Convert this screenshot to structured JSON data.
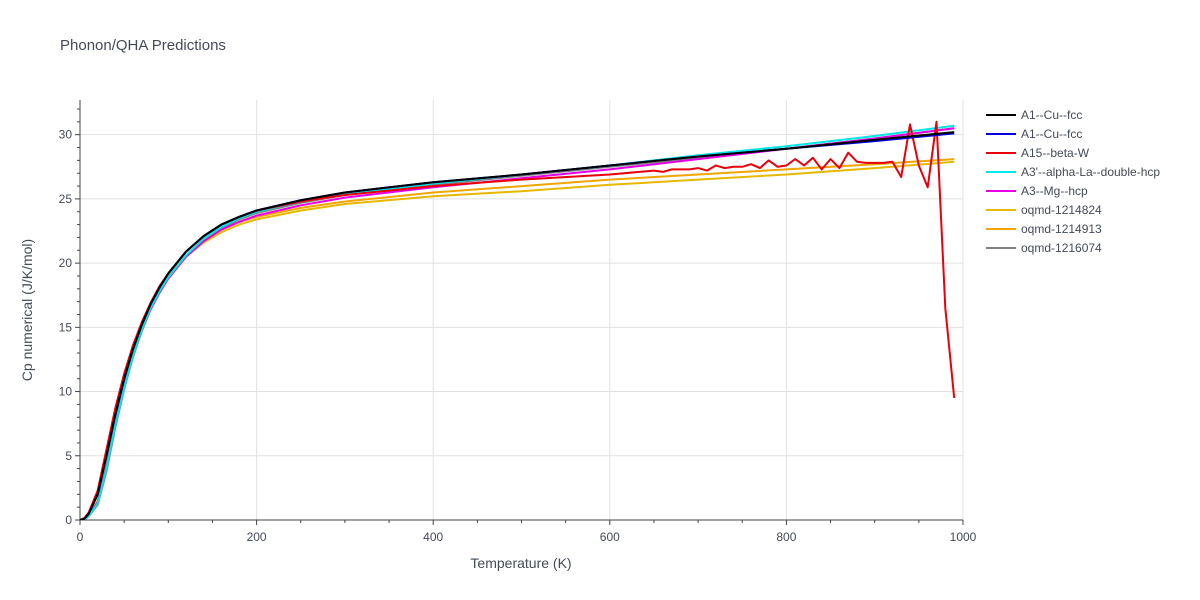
{
  "chart_data": {
    "type": "line",
    "title": "Phonon/QHA Predictions",
    "xlabel": "Temperature (K)",
    "ylabel": "Cp numerical (J/K/mol)",
    "xlim": [
      0,
      1000
    ],
    "ylim": [
      0,
      32.7
    ],
    "xticks": [
      0,
      200,
      400,
      600,
      800,
      1000
    ],
    "yticks": [
      0,
      5,
      10,
      15,
      20,
      25,
      30
    ],
    "grid": true,
    "legend_position": "right",
    "series": [
      {
        "name": "A1--Cu--fcc",
        "color": "#000000",
        "x": [
          0,
          5,
          10,
          20,
          30,
          40,
          50,
          60,
          70,
          80,
          90,
          100,
          120,
          140,
          160,
          180,
          200,
          250,
          300,
          400,
          500,
          600,
          700,
          800,
          900,
          990
        ],
        "y": [
          0,
          0.1,
          0.5,
          2.0,
          5.0,
          8.2,
          11.0,
          13.3,
          15.2,
          16.8,
          18.1,
          19.2,
          20.9,
          22.1,
          23.0,
          23.6,
          24.1,
          24.9,
          25.5,
          26.3,
          26.9,
          27.6,
          28.3,
          28.9,
          29.6,
          30.2
        ]
      },
      {
        "name": "A1--Cu--fcc",
        "color": "#0000dd",
        "x": [
          0,
          5,
          10,
          20,
          30,
          40,
          50,
          60,
          70,
          80,
          90,
          100,
          120,
          140,
          160,
          180,
          200,
          250,
          300,
          400,
          500,
          600,
          700,
          800,
          900,
          990
        ],
        "y": [
          0,
          0.1,
          0.5,
          2.0,
          5.0,
          8.2,
          11.0,
          13.3,
          15.2,
          16.8,
          18.1,
          19.2,
          20.9,
          22.1,
          23.0,
          23.6,
          24.1,
          24.9,
          25.5,
          26.3,
          26.9,
          27.6,
          28.3,
          28.9,
          29.5,
          30.1
        ]
      },
      {
        "name": "A15--beta-W",
        "color": "#e8000b",
        "x": [
          0,
          5,
          10,
          20,
          30,
          40,
          50,
          60,
          70,
          80,
          90,
          100,
          120,
          140,
          160,
          180,
          200,
          250,
          300,
          400,
          500,
          600,
          650,
          660,
          670,
          680,
          690,
          700,
          710,
          720,
          730,
          740,
          750,
          760,
          770,
          780,
          790,
          800,
          810,
          820,
          830,
          840,
          850,
          860,
          870,
          880,
          890,
          900,
          910,
          920,
          930,
          940,
          950,
          960,
          970,
          980,
          990
        ],
        "y": [
          0,
          0.15,
          0.6,
          2.3,
          5.5,
          8.7,
          11.4,
          13.6,
          15.4,
          16.9,
          18.2,
          19.2,
          20.9,
          22.1,
          23.0,
          23.6,
          24.1,
          24.8,
          25.3,
          26.0,
          26.5,
          26.9,
          27.2,
          27.1,
          27.3,
          27.3,
          27.3,
          27.4,
          27.2,
          27.6,
          27.4,
          27.5,
          27.5,
          27.7,
          27.4,
          28.0,
          27.5,
          27.6,
          28.1,
          27.6,
          28.2,
          27.3,
          28.1,
          27.4,
          28.6,
          27.9,
          27.8,
          27.8,
          27.8,
          27.9,
          26.7,
          30.8,
          27.6,
          25.9,
          31.0,
          16.5,
          9.5
        ]
      },
      {
        "name": "A3'--alpha-La--double-hcp",
        "color": "#00e5e5",
        "x": [
          0,
          5,
          10,
          20,
          30,
          40,
          50,
          60,
          70,
          80,
          90,
          100,
          120,
          140,
          160,
          180,
          200,
          250,
          300,
          400,
          500,
          600,
          700,
          800,
          900,
          990
        ],
        "y": [
          0,
          0.05,
          0.3,
          1.3,
          4.0,
          7.4,
          10.3,
          12.8,
          14.8,
          16.5,
          17.8,
          18.9,
          20.6,
          21.9,
          22.8,
          23.5,
          24.0,
          24.8,
          25.4,
          26.2,
          26.9,
          27.6,
          28.4,
          29.1,
          29.9,
          30.7
        ]
      },
      {
        "name": "A3--Mg--hcp",
        "color": "#e600e6",
        "x": [
          0,
          5,
          10,
          20,
          30,
          40,
          50,
          60,
          70,
          80,
          90,
          100,
          120,
          140,
          160,
          180,
          200,
          250,
          300,
          400,
          500,
          600,
          700,
          800,
          900,
          990
        ],
        "y": [
          0,
          0.05,
          0.3,
          1.4,
          4.1,
          7.5,
          10.4,
          12.8,
          14.8,
          16.4,
          17.7,
          18.8,
          20.5,
          21.7,
          22.6,
          23.2,
          23.7,
          24.5,
          25.1,
          25.9,
          26.6,
          27.3,
          28.1,
          28.9,
          29.7,
          30.5
        ]
      },
      {
        "name": "oqmd-1214824",
        "color": "#e6b800",
        "x": [
          0,
          5,
          10,
          20,
          30,
          40,
          50,
          60,
          70,
          80,
          90,
          100,
          120,
          140,
          160,
          180,
          200,
          250,
          300,
          400,
          500,
          600,
          700,
          800,
          900,
          990
        ],
        "y": [
          0,
          0.05,
          0.3,
          1.4,
          4.2,
          7.6,
          10.5,
          12.9,
          14.9,
          16.5,
          17.8,
          18.9,
          20.5,
          21.6,
          22.4,
          23.0,
          23.4,
          24.1,
          24.6,
          25.2,
          25.6,
          26.1,
          26.5,
          26.9,
          27.4,
          27.9
        ]
      },
      {
        "name": "oqmd-1214913",
        "color": "#f0a500",
        "x": [
          0,
          5,
          10,
          20,
          30,
          40,
          50,
          60,
          70,
          80,
          90,
          100,
          120,
          140,
          160,
          180,
          200,
          250,
          300,
          400,
          500,
          600,
          700,
          800,
          900,
          990
        ],
        "y": [
          0,
          0.05,
          0.3,
          1.5,
          4.3,
          7.7,
          10.6,
          13.0,
          15.0,
          16.6,
          17.9,
          19.0,
          20.6,
          21.8,
          22.6,
          23.2,
          23.6,
          24.3,
          24.8,
          25.5,
          26.0,
          26.5,
          26.9,
          27.3,
          27.7,
          28.1
        ]
      },
      {
        "name": "oqmd-1216074",
        "color": "#808080",
        "x": [
          0,
          5,
          10,
          20,
          30,
          40,
          50,
          60,
          70,
          80,
          90,
          100,
          120,
          140,
          160,
          180,
          200,
          250,
          300,
          400,
          500,
          600,
          700,
          800,
          900,
          990
        ],
        "y": [
          0,
          0.05,
          0.3,
          1.2,
          3.8,
          7.2,
          10.2,
          12.7,
          14.7,
          16.4,
          17.7,
          18.8,
          20.5,
          21.8,
          22.7,
          23.4,
          23.9,
          24.7,
          25.3,
          26.1,
          26.8,
          27.5,
          28.2,
          28.9,
          29.7,
          30.5
        ]
      }
    ]
  }
}
